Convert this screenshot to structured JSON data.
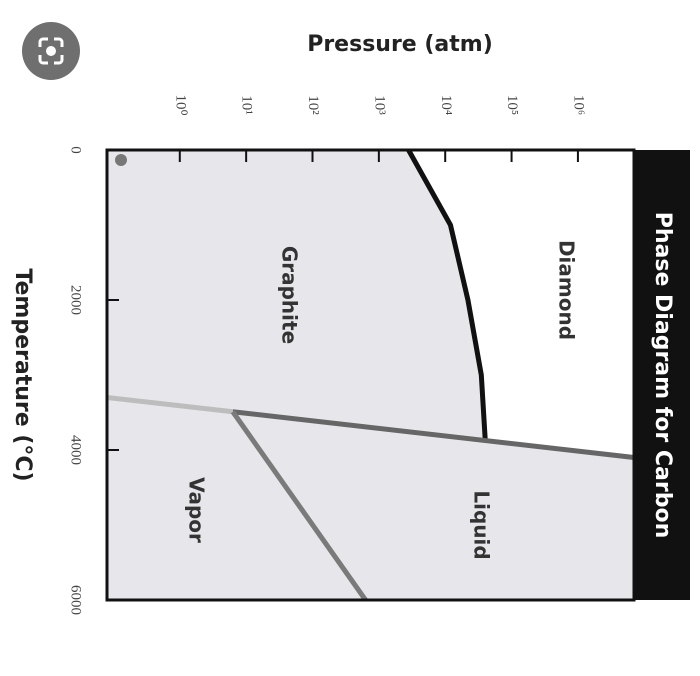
{
  "chart_data": {
    "type": "line",
    "title": "Phase Diagram for Carbon",
    "x_label": "Pressure (atm)",
    "y_label": "Temperature (°C)",
    "xscale": "log",
    "xlim": [
      0.08,
      7000000
    ],
    "xticks": [
      {
        "value": 1,
        "label": "10⁰"
      },
      {
        "value": 10,
        "label": "10¹"
      },
      {
        "value": 100,
        "label": "10²"
      },
      {
        "value": 1000,
        "label": "10³"
      },
      {
        "value": 10000,
        "label": "10⁴"
      },
      {
        "value": 100000,
        "label": "10⁵"
      },
      {
        "value": 1000000,
        "label": "10⁶"
      }
    ],
    "ylim": [
      0,
      6000
    ],
    "yticks": [
      0,
      2000,
      4000,
      6000
    ],
    "series": [
      {
        "color": "#111111",
        "x": [
          2800,
          12000,
          22000,
          35000,
          40000
        ],
        "y": [
          0,
          1000,
          2000,
          3000,
          3850
        ]
      },
      {
        "color": "#666666",
        "x": [
          6.3,
          7000000
        ],
        "y": [
          3490,
          4100
        ]
      },
      {
        "color": "#bdbdbd",
        "x": [
          0.08,
          6.3
        ],
        "y": [
          3300,
          3490
        ]
      },
      {
        "color": "#7a7a7a",
        "x": [
          6.3,
          630
        ],
        "y": [
          3490,
          6000
        ]
      }
    ],
    "annotations": [
      "Diamond",
      "Graphite",
      "Liquid",
      "Vapor"
    ]
  }
}
